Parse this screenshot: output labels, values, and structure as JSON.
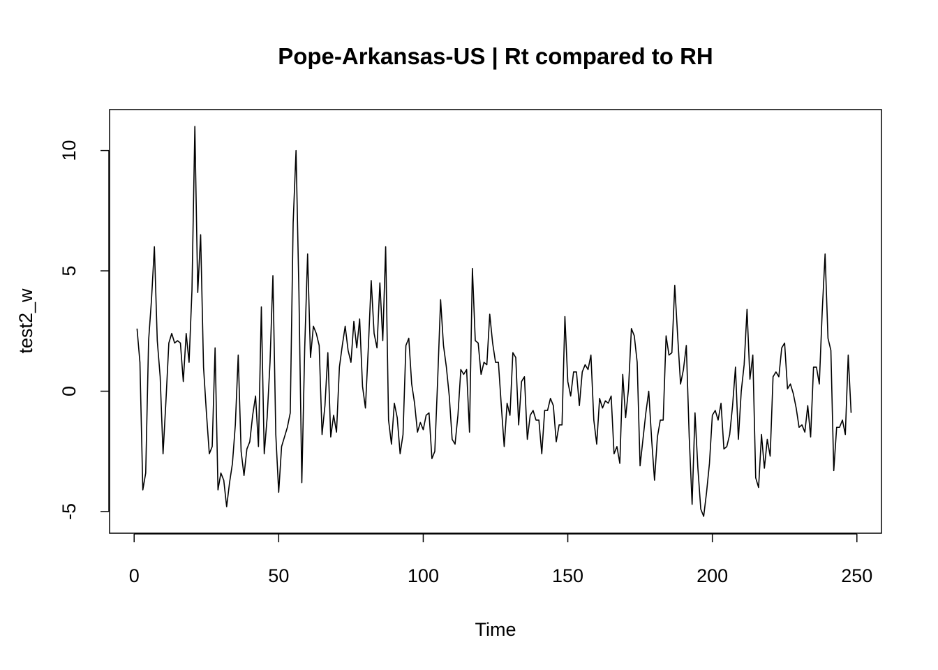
{
  "chart_data": {
    "type": "line",
    "title": "Pope-Arkansas-US | Rt compared to RH",
    "xlabel": "Time",
    "ylabel": "test2_w",
    "xlim": [
      -8.5,
      258.5
    ],
    "ylim": [
      -5.9,
      11.7
    ],
    "x_ticks": [
      0,
      50,
      100,
      150,
      200,
      250
    ],
    "x_tick_labels": [
      "0",
      "50",
      "100",
      "150",
      "200",
      "250"
    ],
    "y_ticks": [
      -5,
      0,
      5,
      10
    ],
    "y_tick_labels": [
      "-5",
      "0",
      "5",
      "10"
    ],
    "grid": false,
    "series": [
      {
        "x_start": 1,
        "values": [
          2.6,
          1.2,
          -4.1,
          -3.4,
          2.1,
          3.8,
          6.0,
          2.1,
          0.6,
          -2.6,
          -0.4,
          2.0,
          2.4,
          2.0,
          2.1,
          2.0,
          0.4,
          2.4,
          1.2,
          4.2,
          11.0,
          4.1,
          6.5,
          1.0,
          -0.9,
          -2.6,
          -2.3,
          1.8,
          -4.1,
          -3.4,
          -3.7,
          -4.8,
          -3.8,
          -3.0,
          -1.4,
          1.5,
          -2.5,
          -3.5,
          -2.4,
          -2.1,
          -1.0,
          -0.2,
          -2.3,
          3.5,
          -2.6,
          -1.1,
          1.2,
          4.8,
          -1.8,
          -4.2,
          -2.3,
          -1.9,
          -1.5,
          -0.9,
          7.0,
          10.0,
          4.1,
          -3.8,
          1.8,
          5.7,
          1.4,
          2.7,
          2.4,
          1.9,
          -1.8,
          -0.6,
          1.6,
          -1.9,
          -1.0,
          -1.7,
          1.0,
          1.9,
          2.7,
          1.7,
          1.2,
          2.9,
          1.8,
          3.0,
          0.2,
          -0.7,
          1.8,
          4.6,
          2.4,
          1.8,
          4.5,
          2.1,
          6.0,
          -1.2,
          -2.2,
          -0.5,
          -1.1,
          -2.6,
          -1.8,
          1.9,
          2.2,
          0.3,
          -0.5,
          -1.7,
          -1.3,
          -1.6,
          -1.0,
          -0.9,
          -2.8,
          -2.5,
          0.5,
          3.8,
          1.9,
          1.0,
          -0.2,
          -2.0,
          -2.2,
          -1.0,
          0.9,
          0.7,
          0.9,
          -1.7,
          5.1,
          2.1,
          2.0,
          0.7,
          1.2,
          1.1,
          3.2,
          2.0,
          1.2,
          1.2,
          -0.6,
          -2.3,
          -0.5,
          -1.0,
          1.6,
          1.4,
          -1.4,
          0.4,
          0.6,
          -2.0,
          -1.0,
          -0.8,
          -1.2,
          -1.2,
          -2.6,
          -0.8,
          -0.8,
          -0.3,
          -0.6,
          -2.1,
          -1.4,
          -1.4,
          3.1,
          0.4,
          -0.2,
          0.8,
          0.8,
          -0.6,
          0.8,
          1.1,
          0.9,
          1.5,
          -1.2,
          -2.2,
          -0.3,
          -0.7,
          -0.4,
          -0.5,
          -0.2,
          -2.6,
          -2.3,
          -3.0,
          0.7,
          -1.1,
          0.1,
          2.6,
          2.3,
          1.2,
          -3.1,
          -2.0,
          -0.9,
          0.0,
          -2.0,
          -3.7,
          -1.9,
          -1.2,
          -1.2,
          2.3,
          1.5,
          1.6,
          4.4,
          2.3,
          0.3,
          0.9,
          1.9,
          -1.9,
          -4.7,
          -0.9,
          -3.2,
          -4.9,
          -5.2,
          -4.2,
          -3.0,
          -1.0,
          -0.8,
          -1.2,
          -0.5,
          -2.4,
          -2.3,
          -1.8,
          -0.6,
          1.0,
          -2.0,
          0.0,
          1.1,
          3.4,
          0.5,
          1.5,
          -3.6,
          -4.0,
          -1.8,
          -3.2,
          -2.0,
          -2.7,
          0.6,
          0.8,
          0.6,
          1.8,
          2.0,
          0.1,
          0.3,
          -0.1,
          -0.7,
          -1.5,
          -1.4,
          -1.7,
          -0.6,
          -1.9,
          1.0,
          1.0,
          0.3,
          3.3,
          5.7,
          2.2,
          1.7,
          -3.3,
          -1.5,
          -1.5,
          -1.2,
          -1.8,
          1.5,
          -0.9
        ]
      }
    ]
  }
}
